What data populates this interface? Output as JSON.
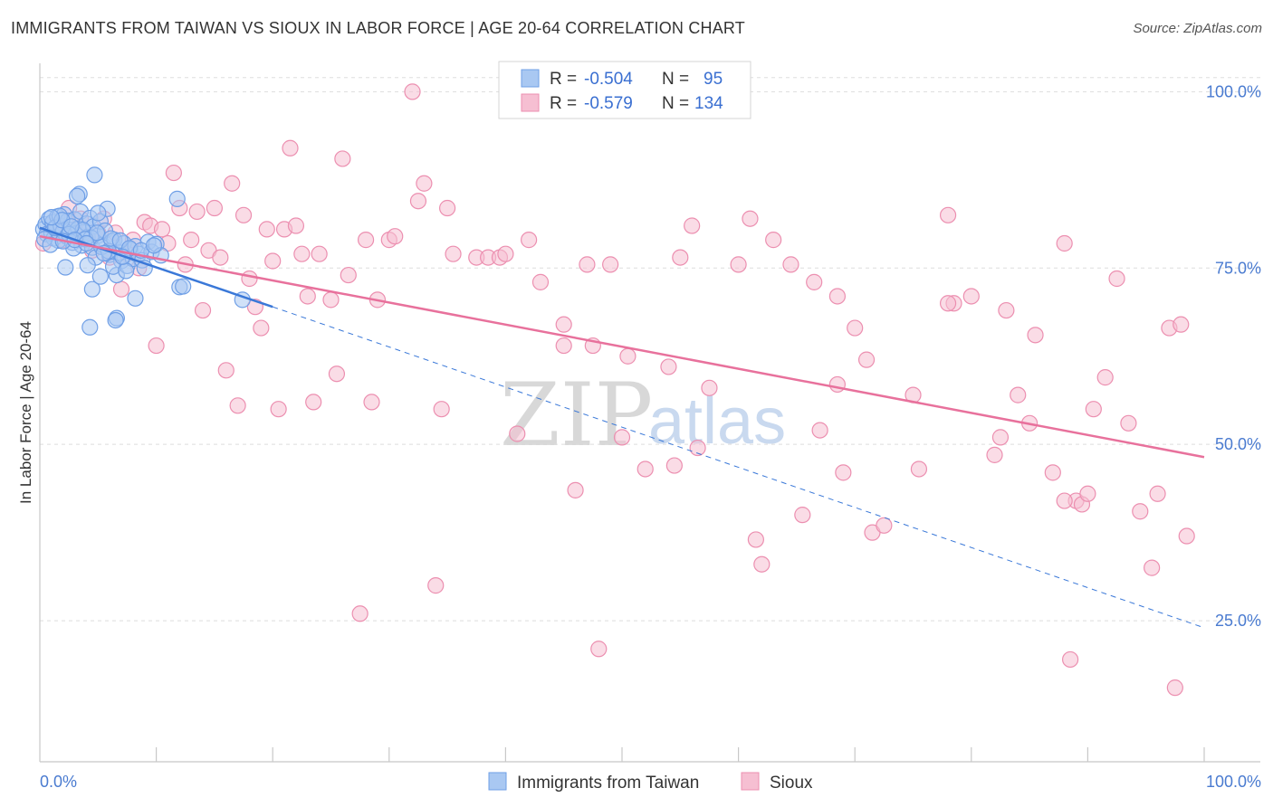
{
  "title": "IMMIGRANTS FROM TAIWAN VS SIOUX IN LABOR FORCE | AGE 20-64 CORRELATION CHART",
  "source": "Source: ZipAtlas.com",
  "watermark": {
    "zip": "ZIP",
    "atlas": "atlas"
  },
  "colors": {
    "taiwan_fill": "#a9c8f2",
    "taiwan_stroke": "#6f9fe6",
    "taiwan_line": "#3a78d8",
    "sioux_fill": "#f6bfd2",
    "sioux_stroke": "#ec8fb0",
    "sioux_line": "#e8719c",
    "tick_text": "#4a7bd0",
    "grid": "#dddddd"
  },
  "legend": {
    "rows": [
      {
        "r_label": "R =",
        "r_value": "-0.504",
        "n_label": "N =",
        "n_value": "95"
      },
      {
        "r_label": "R =",
        "r_value": "-0.579",
        "n_label": "N =",
        "n_value": "134"
      }
    ]
  },
  "chart_data": {
    "type": "scatter",
    "title": "IMMIGRANTS FROM TAIWAN VS SIOUX IN LABOR FORCE | AGE 20-64 CORRELATION CHART",
    "xlabel": "",
    "ylabel": "In Labor Force | Age 20-64",
    "xlim": [
      0,
      100
    ],
    "ylim": [
      5,
      103
    ],
    "x_tick_labels": [
      "0.0%",
      "100.0%"
    ],
    "y_ticks": [
      25,
      50,
      75,
      100
    ],
    "y_tick_labels": [
      "25.0%",
      "50.0%",
      "75.0%",
      "100.0%"
    ],
    "grid": true,
    "series": [
      {
        "name": "Immigrants from Taiwan",
        "r": -0.504,
        "n": 95,
        "trend": {
          "x0": 0,
          "y0": 80.7,
          "x1": 20,
          "y1": 69.5,
          "dashed_to_x": 100,
          "dashed_to_y": 24
        },
        "points": [
          [
            0.3,
            80.5
          ],
          [
            0.5,
            81.2
          ],
          [
            0.6,
            79.8
          ],
          [
            0.8,
            82.0
          ],
          [
            1.0,
            80.0
          ],
          [
            1.1,
            81.5
          ],
          [
            1.2,
            79.2
          ],
          [
            1.4,
            80.8
          ],
          [
            1.5,
            82.3
          ],
          [
            1.6,
            78.9
          ],
          [
            1.8,
            81.0
          ],
          [
            2.0,
            80.2
          ],
          [
            2.1,
            82.6
          ],
          [
            2.3,
            79.5
          ],
          [
            2.4,
            81.7
          ],
          [
            2.6,
            80.4
          ],
          [
            2.8,
            78.6
          ],
          [
            3.0,
            81.9
          ],
          [
            3.1,
            79.9
          ],
          [
            3.3,
            80.6
          ],
          [
            3.5,
            83.0
          ],
          [
            3.6,
            78.2
          ],
          [
            3.8,
            80.1
          ],
          [
            4.0,
            81.3
          ],
          [
            4.1,
            79.4
          ],
          [
            4.3,
            82.1
          ],
          [
            4.5,
            77.9
          ],
          [
            4.6,
            80.9
          ],
          [
            4.8,
            76.5
          ],
          [
            5.0,
            79.6
          ],
          [
            5.2,
            81.6
          ],
          [
            5.4,
            78.3
          ],
          [
            5.6,
            80.3
          ],
          [
            5.8,
            83.4
          ],
          [
            6.0,
            76.9
          ],
          [
            6.2,
            78.8
          ],
          [
            6.4,
            79.0
          ],
          [
            6.6,
            74.0
          ],
          [
            6.8,
            77.2
          ],
          [
            7.0,
            76.0
          ],
          [
            7.2,
            78.5
          ],
          [
            7.5,
            75.3
          ],
          [
            7.8,
            77.6
          ],
          [
            8.0,
            76.3
          ],
          [
            8.2,
            78.1
          ],
          [
            8.5,
            77.0
          ],
          [
            8.8,
            76.1
          ],
          [
            9.0,
            75.0
          ],
          [
            9.3,
            78.7
          ],
          [
            9.6,
            77.3
          ],
          [
            10.0,
            78.4
          ],
          [
            10.4,
            76.8
          ],
          [
            3.4,
            85.5
          ],
          [
            4.7,
            88.2
          ],
          [
            3.2,
            85.2
          ],
          [
            5.0,
            82.8
          ],
          [
            11.8,
            84.8
          ],
          [
            12.0,
            72.3
          ],
          [
            12.3,
            72.4
          ],
          [
            17.4,
            70.5
          ],
          [
            6.6,
            67.9
          ],
          [
            6.5,
            67.6
          ],
          [
            4.3,
            66.6
          ],
          [
            4.5,
            72.0
          ],
          [
            2.2,
            75.1
          ],
          [
            4.1,
            75.4
          ],
          [
            5.2,
            73.8
          ],
          [
            6.3,
            75.2
          ],
          [
            7.4,
            74.6
          ],
          [
            8.2,
            70.7
          ],
          [
            0.4,
            79.1
          ],
          [
            0.9,
            78.3
          ],
          [
            1.3,
            80.7
          ],
          [
            1.7,
            82.4
          ],
          [
            2.5,
            79.8
          ],
          [
            2.9,
            77.8
          ],
          [
            3.7,
            80.4
          ],
          [
            4.4,
            79.3
          ],
          [
            5.3,
            78.0
          ],
          [
            5.9,
            77.4
          ],
          [
            1.9,
            81.8
          ],
          [
            2.7,
            80.9
          ],
          [
            3.9,
            79.1
          ],
          [
            4.9,
            80.0
          ],
          [
            6.1,
            79.2
          ],
          [
            6.9,
            78.9
          ],
          [
            7.7,
            77.8
          ],
          [
            8.7,
            77.5
          ],
          [
            9.8,
            78.2
          ],
          [
            1.0,
            82.2
          ],
          [
            2.0,
            78.8
          ],
          [
            3.0,
            79.0
          ],
          [
            4.0,
            78.5
          ],
          [
            5.5,
            77.1
          ],
          [
            7.1,
            76.6
          ]
        ]
      },
      {
        "name": "Sioux",
        "r": -0.579,
        "n": 134,
        "trend": {
          "x0": 0,
          "y0": 79.5,
          "x1": 100,
          "y1": 48.2
        },
        "points": [
          [
            0.3,
            78.5
          ],
          [
            0.8,
            80.0
          ],
          [
            1.5,
            81.0
          ],
          [
            2.0,
            79.0
          ],
          [
            2.5,
            83.5
          ],
          [
            3.0,
            80.5
          ],
          [
            3.5,
            82.0
          ],
          [
            4.0,
            79.5
          ],
          [
            4.5,
            77.5
          ],
          [
            5.0,
            80.0
          ],
          [
            5.5,
            82.0
          ],
          [
            6.0,
            76.5
          ],
          [
            6.5,
            80.0
          ],
          [
            7.0,
            72.0
          ],
          [
            7.5,
            77.0
          ],
          [
            8.0,
            79.0
          ],
          [
            8.5,
            75.0
          ],
          [
            9.0,
            81.5
          ],
          [
            9.5,
            81.0
          ],
          [
            10.0,
            64.0
          ],
          [
            10.5,
            80.5
          ],
          [
            11.0,
            78.5
          ],
          [
            11.5,
            88.5
          ],
          [
            12.0,
            83.5
          ],
          [
            12.5,
            75.5
          ],
          [
            13.0,
            79.0
          ],
          [
            13.5,
            83.0
          ],
          [
            14.0,
            69.0
          ],
          [
            14.5,
            77.5
          ],
          [
            15.0,
            83.5
          ],
          [
            15.5,
            76.5
          ],
          [
            16.0,
            60.5
          ],
          [
            16.5,
            87.0
          ],
          [
            17.0,
            55.5
          ],
          [
            17.5,
            82.5
          ],
          [
            18.0,
            73.5
          ],
          [
            18.5,
            69.5
          ],
          [
            19.0,
            66.5
          ],
          [
            19.5,
            80.5
          ],
          [
            20.0,
            76.0
          ],
          [
            20.5,
            55.0
          ],
          [
            21.0,
            80.5
          ],
          [
            21.5,
            92.0
          ],
          [
            22.0,
            81.0
          ],
          [
            22.5,
            77.0
          ],
          [
            23.0,
            71.0
          ],
          [
            23.5,
            56.0
          ],
          [
            24.0,
            77.0
          ],
          [
            25.0,
            70.5
          ],
          [
            25.5,
            60.0
          ],
          [
            26.0,
            90.5
          ],
          [
            26.5,
            74.0
          ],
          [
            27.5,
            26.0
          ],
          [
            28.0,
            79.0
          ],
          [
            28.5,
            56.0
          ],
          [
            29.0,
            70.5
          ],
          [
            30.0,
            79.0
          ],
          [
            30.5,
            79.5
          ],
          [
            32.0,
            100.0
          ],
          [
            32.5,
            84.5
          ],
          [
            33.0,
            87.0
          ],
          [
            34.0,
            30.0
          ],
          [
            34.5,
            55.0
          ],
          [
            35.0,
            83.5
          ],
          [
            35.5,
            77.0
          ],
          [
            37.5,
            76.5
          ],
          [
            38.5,
            76.5
          ],
          [
            39.5,
            76.5
          ],
          [
            40.0,
            77.0
          ],
          [
            41.0,
            51.5
          ],
          [
            42.0,
            79.0
          ],
          [
            43.0,
            73.0
          ],
          [
            45.0,
            67.0
          ],
          [
            46.0,
            43.5
          ],
          [
            47.0,
            75.5
          ],
          [
            47.5,
            64.0
          ],
          [
            48.0,
            21.0
          ],
          [
            49.0,
            75.5
          ],
          [
            50.0,
            51.0
          ],
          [
            50.5,
            62.5
          ],
          [
            52.0,
            46.5
          ],
          [
            54.0,
            61.0
          ],
          [
            54.5,
            47.0
          ],
          [
            55.0,
            76.5
          ],
          [
            56.0,
            81.0
          ],
          [
            56.5,
            49.5
          ],
          [
            57.5,
            58.0
          ],
          [
            60.0,
            75.5
          ],
          [
            61.0,
            82.0
          ],
          [
            61.5,
            36.5
          ],
          [
            62.0,
            33.0
          ],
          [
            63.0,
            79.0
          ],
          [
            64.5,
            75.5
          ],
          [
            65.5,
            40.0
          ],
          [
            66.5,
            73.0
          ],
          [
            67.0,
            52.0
          ],
          [
            68.5,
            71.0
          ],
          [
            68.5,
            58.5
          ],
          [
            69.0,
            46.0
          ],
          [
            70.0,
            66.5
          ],
          [
            71.0,
            62.0
          ],
          [
            71.5,
            37.5
          ],
          [
            72.5,
            38.5
          ],
          [
            75.0,
            57.0
          ],
          [
            75.5,
            46.5
          ],
          [
            78.0,
            82.5
          ],
          [
            78.5,
            70.0
          ],
          [
            78.0,
            70.0
          ],
          [
            80.0,
            71.0
          ],
          [
            82.0,
            48.5
          ],
          [
            82.5,
            51.0
          ],
          [
            83.0,
            69.0
          ],
          [
            84.0,
            57.0
          ],
          [
            85.0,
            53.0
          ],
          [
            85.5,
            65.5
          ],
          [
            87.0,
            46.0
          ],
          [
            88.0,
            78.5
          ],
          [
            88.5,
            19.5
          ],
          [
            89.0,
            42.0
          ],
          [
            89.5,
            41.5
          ],
          [
            90.0,
            43.0
          ],
          [
            90.5,
            55.0
          ],
          [
            91.5,
            59.5
          ],
          [
            92.5,
            73.5
          ],
          [
            93.5,
            53.0
          ],
          [
            94.5,
            40.5
          ],
          [
            95.5,
            32.5
          ],
          [
            96.0,
            43.0
          ],
          [
            97.0,
            66.5
          ],
          [
            97.5,
            15.5
          ],
          [
            98.0,
            67.0
          ],
          [
            98.5,
            37.0
          ],
          [
            88.0,
            42.0
          ],
          [
            45.0,
            64.0
          ]
        ]
      }
    ]
  },
  "bottom_legend": [
    "Immigrants from Taiwan",
    "Sioux"
  ]
}
